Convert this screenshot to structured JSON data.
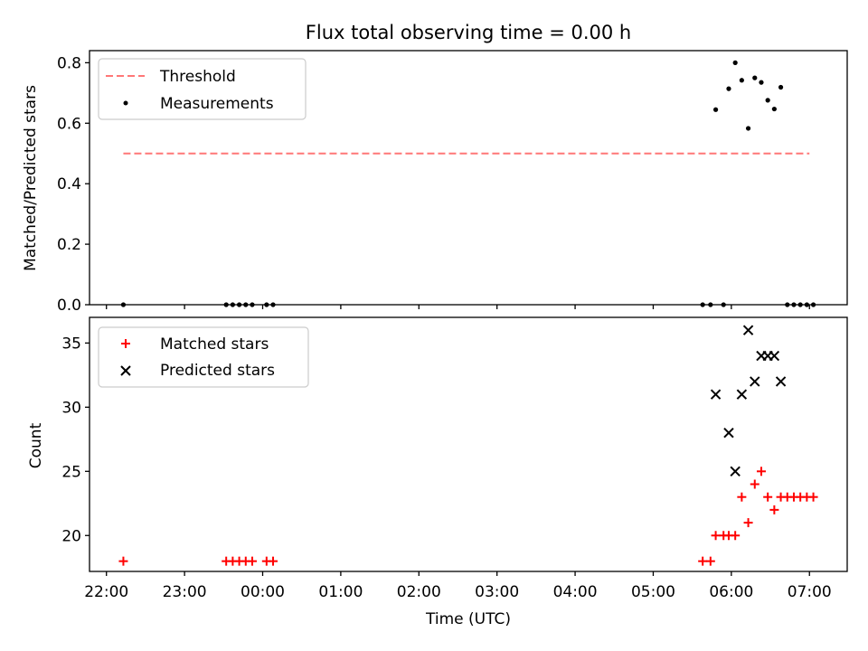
{
  "chart_data": [
    {
      "type": "scatter",
      "title": "Flux total observing time = 0.00 h",
      "xlabel": "",
      "ylabel": "Matched/Predicted stars",
      "ylim": [
        0,
        0.84
      ],
      "yticks": [
        0.0,
        0.2,
        0.4,
        0.6,
        0.8
      ],
      "ytick_labels": [
        "0.0",
        "0.2",
        "0.4",
        "0.6",
        "0.8"
      ],
      "legend_position": "upper left",
      "threshold": {
        "name": "Threshold",
        "value": 0.5,
        "x_start": "22:13",
        "x_end": "07:00",
        "color": "#ff7777",
        "style": "dashed"
      },
      "series": [
        {
          "name": "Measurements",
          "marker": "dot",
          "color": "#000000",
          "points": [
            {
              "x": "22:13",
              "y": 0.0
            },
            {
              "x": "23:32",
              "y": 0.0
            },
            {
              "x": "23:37",
              "y": 0.0
            },
            {
              "x": "23:42",
              "y": 0.0
            },
            {
              "x": "23:47",
              "y": 0.0
            },
            {
              "x": "23:52",
              "y": 0.0
            },
            {
              "x": "00:03",
              "y": 0.0
            },
            {
              "x": "00:08",
              "y": 0.0
            },
            {
              "x": "05:38",
              "y": 0.0
            },
            {
              "x": "05:44",
              "y": 0.0
            },
            {
              "x": "05:48",
              "y": 0.645
            },
            {
              "x": "05:54",
              "y": 0.0
            },
            {
              "x": "05:58",
              "y": 0.714
            },
            {
              "x": "06:03",
              "y": 0.8
            },
            {
              "x": "06:08",
              "y": 0.742
            },
            {
              "x": "06:13",
              "y": 0.583
            },
            {
              "x": "06:18",
              "y": 0.75
            },
            {
              "x": "06:23",
              "y": 0.735
            },
            {
              "x": "06:28",
              "y": 0.676
            },
            {
              "x": "06:33",
              "y": 0.647
            },
            {
              "x": "06:38",
              "y": 0.719
            },
            {
              "x": "06:43",
              "y": 0.0
            },
            {
              "x": "06:48",
              "y": 0.0
            },
            {
              "x": "06:53",
              "y": 0.0
            },
            {
              "x": "06:58",
              "y": 0.0
            },
            {
              "x": "07:03",
              "y": 0.0
            }
          ]
        }
      ]
    },
    {
      "type": "scatter",
      "title": "",
      "xlabel": "Time (UTC)",
      "ylabel": "Count",
      "ylim": [
        17.2,
        37.0
      ],
      "yticks": [
        20,
        25,
        30,
        35
      ],
      "ytick_labels": [
        "20",
        "25",
        "30",
        "35"
      ],
      "xlim": [
        "21:47",
        "07:29"
      ],
      "xticks": [
        "22:00",
        "23:00",
        "00:00",
        "01:00",
        "02:00",
        "03:00",
        "04:00",
        "05:00",
        "06:00",
        "07:00"
      ],
      "legend_position": "upper left",
      "series": [
        {
          "name": "Matched stars",
          "marker": "plus",
          "color": "#ff0000",
          "points": [
            {
              "x": "22:13",
              "y": 18
            },
            {
              "x": "23:32",
              "y": 18
            },
            {
              "x": "23:37",
              "y": 18
            },
            {
              "x": "23:42",
              "y": 18
            },
            {
              "x": "23:47",
              "y": 18
            },
            {
              "x": "23:52",
              "y": 18
            },
            {
              "x": "00:03",
              "y": 18
            },
            {
              "x": "00:08",
              "y": 18
            },
            {
              "x": "05:38",
              "y": 18
            },
            {
              "x": "05:44",
              "y": 18
            },
            {
              "x": "05:48",
              "y": 20
            },
            {
              "x": "05:54",
              "y": 20
            },
            {
              "x": "05:58",
              "y": 20
            },
            {
              "x": "06:03",
              "y": 20
            },
            {
              "x": "06:08",
              "y": 23
            },
            {
              "x": "06:13",
              "y": 21
            },
            {
              "x": "06:18",
              "y": 24
            },
            {
              "x": "06:23",
              "y": 25
            },
            {
              "x": "06:28",
              "y": 23
            },
            {
              "x": "06:33",
              "y": 22
            },
            {
              "x": "06:38",
              "y": 23
            },
            {
              "x": "06:43",
              "y": 23
            },
            {
              "x": "06:48",
              "y": 23
            },
            {
              "x": "06:53",
              "y": 23
            },
            {
              "x": "06:58",
              "y": 23
            },
            {
              "x": "07:03",
              "y": 23
            }
          ]
        },
        {
          "name": "Predicted stars",
          "marker": "x",
          "color": "#000000",
          "points": [
            {
              "x": "05:48",
              "y": 31
            },
            {
              "x": "05:58",
              "y": 28
            },
            {
              "x": "06:03",
              "y": 25
            },
            {
              "x": "06:08",
              "y": 31
            },
            {
              "x": "06:13",
              "y": 36
            },
            {
              "x": "06:18",
              "y": 32
            },
            {
              "x": "06:23",
              "y": 34
            },
            {
              "x": "06:28",
              "y": 34
            },
            {
              "x": "06:33",
              "y": 34
            },
            {
              "x": "06:38",
              "y": 32
            }
          ]
        }
      ]
    }
  ]
}
